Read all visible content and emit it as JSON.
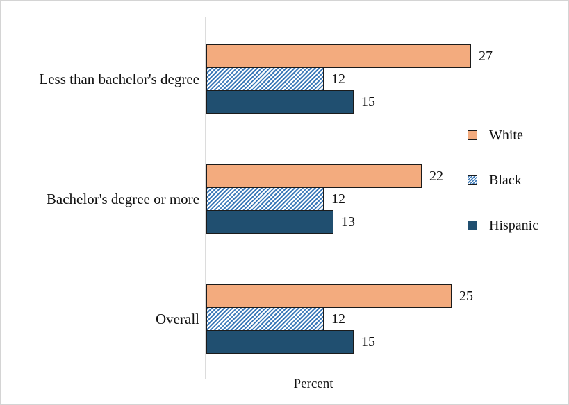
{
  "chart_data": {
    "type": "bar",
    "orientation": "horizontal",
    "title": "",
    "xlabel": "Percent",
    "xlim": [
      0,
      30
    ],
    "grid": false,
    "data_labels": true,
    "legend_position": "right",
    "categories": [
      "Less than bachelor's degree",
      "Bachelor's degree or more",
      "Overall"
    ],
    "series": [
      {
        "name": "White",
        "values": [
          27,
          22,
          25
        ],
        "fill": "#F3AB7E",
        "pattern": "solid"
      },
      {
        "name": "Black",
        "values": [
          12,
          12,
          12
        ],
        "fill": "#3C79B8",
        "pattern": "diagonal-hatch"
      },
      {
        "name": "Hispanic",
        "values": [
          15,
          13,
          15
        ],
        "fill": "#204F70",
        "pattern": "solid"
      }
    ]
  },
  "colors": {
    "axis_line": "#DCDCDC",
    "bar_border": "#1B1B1B",
    "frame_border": "#D4D4D4",
    "background": "#FFFFFF",
    "text": "#111111",
    "hatch_background": "#FFFFFF"
  }
}
